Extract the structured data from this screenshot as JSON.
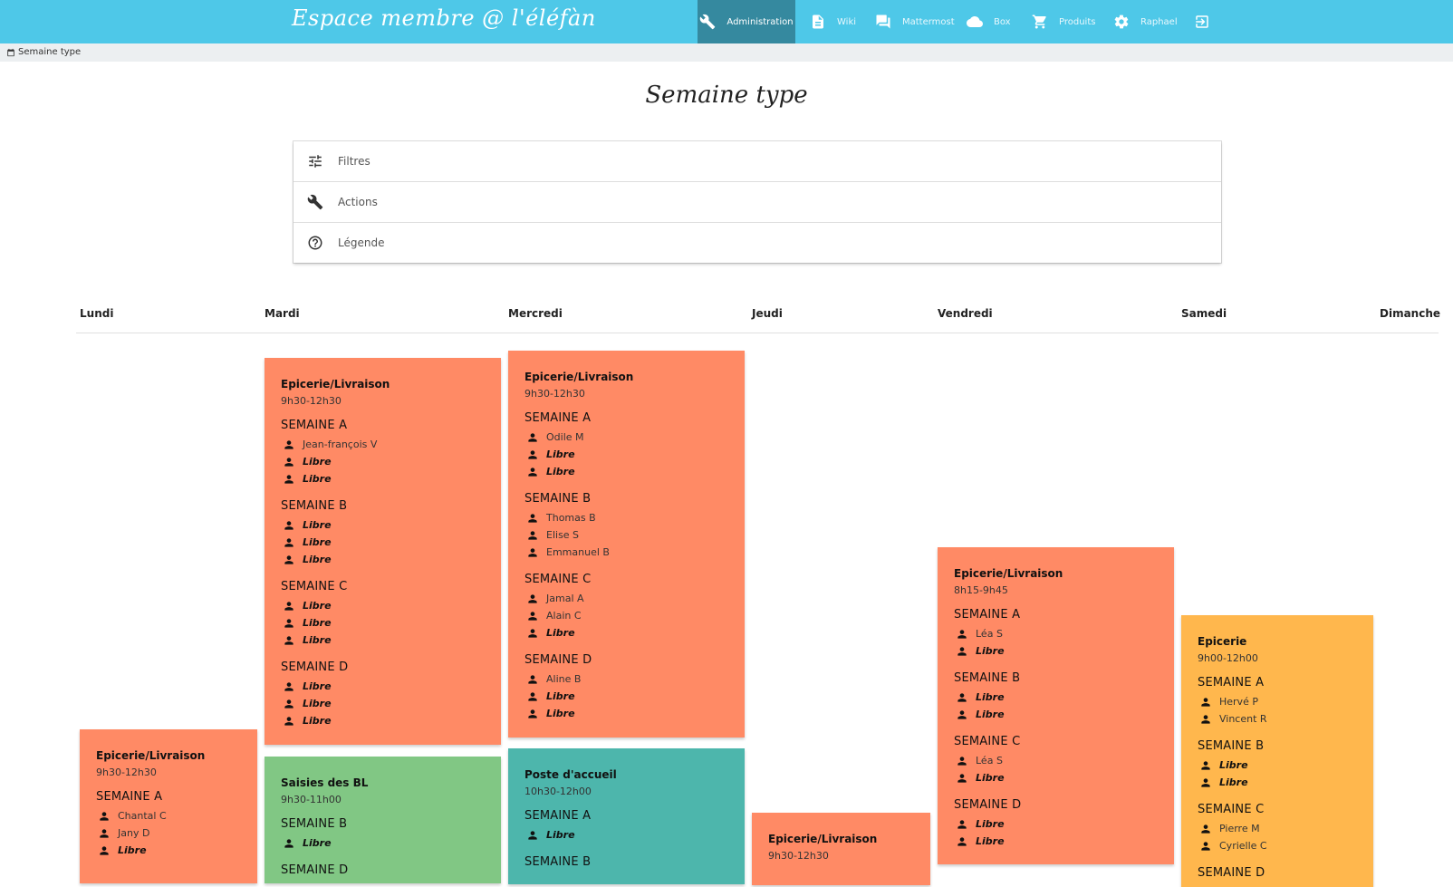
{
  "app": {
    "brand": "Espace membre @ l'éléfàn"
  },
  "nav": [
    {
      "label": "Administration",
      "icon": "wrench-icon",
      "active": true
    },
    {
      "label": "Wiki",
      "icon": "document-icon"
    },
    {
      "label": "Mattermost",
      "icon": "chat-icon"
    },
    {
      "label": "Box",
      "icon": "cloud-icon"
    },
    {
      "label": "Produits",
      "icon": "cart-icon"
    },
    {
      "label": "Raphael",
      "icon": "gear-icon"
    },
    {
      "label": "",
      "icon": "logout-icon"
    }
  ],
  "breadcrumb": {
    "label": "Semaine type",
    "icon": "calendar-icon"
  },
  "page": {
    "title": "Semaine type"
  },
  "collapsible": [
    {
      "label": "Filtres",
      "icon": "tune-icon"
    },
    {
      "label": "Actions",
      "icon": "wrench-icon"
    },
    {
      "label": "Légende",
      "icon": "help-circle-icon"
    }
  ],
  "days": [
    "Lundi",
    "Mardi",
    "Mercredi",
    "Jeudi",
    "Vendredi",
    "Samedi",
    "Dimanche"
  ],
  "colors": {
    "orange": "#ff8a65",
    "green": "#81c784",
    "teal": "#4db6ac",
    "amber": "#ffb74d",
    "topbar": "#4ec8e8",
    "active": "#35899f"
  },
  "cards": [
    {
      "day": "Lundi",
      "color": "orange",
      "title": "Epicerie/Livraison",
      "time": "9h30-12h30",
      "weeks": [
        {
          "label": "SEMAINE A",
          "people": [
            {
              "name": "Chantal C",
              "libre": false
            },
            {
              "name": "Jany D",
              "libre": false
            },
            {
              "name": "Libre",
              "libre": true
            }
          ]
        }
      ]
    },
    {
      "day": "Mardi",
      "color": "orange",
      "title": "Epicerie/Livraison",
      "time": "9h30-12h30",
      "weeks": [
        {
          "label": "SEMAINE A",
          "people": [
            {
              "name": "Jean-françois V",
              "libre": false
            },
            {
              "name": "Libre",
              "libre": true
            },
            {
              "name": "Libre",
              "libre": true
            }
          ]
        },
        {
          "label": "SEMAINE B",
          "people": [
            {
              "name": "Libre",
              "libre": true
            },
            {
              "name": "Libre",
              "libre": true
            },
            {
              "name": "Libre",
              "libre": true
            }
          ]
        },
        {
          "label": "SEMAINE C",
          "people": [
            {
              "name": "Libre",
              "libre": true
            },
            {
              "name": "Libre",
              "libre": true
            },
            {
              "name": "Libre",
              "libre": true
            }
          ]
        },
        {
          "label": "SEMAINE D",
          "people": [
            {
              "name": "Libre",
              "libre": true
            },
            {
              "name": "Libre",
              "libre": true
            },
            {
              "name": "Libre",
              "libre": true
            }
          ]
        }
      ]
    },
    {
      "day": "Mardi",
      "color": "green",
      "title": "Saisies des BL",
      "time": "9h30-11h00",
      "weeks": [
        {
          "label": "SEMAINE B",
          "people": [
            {
              "name": "Libre",
              "libre": true
            }
          ]
        },
        {
          "label": "SEMAINE D",
          "people": []
        }
      ]
    },
    {
      "day": "Mercredi",
      "color": "orange",
      "title": "Epicerie/Livraison",
      "time": "9h30-12h30",
      "weeks": [
        {
          "label": "SEMAINE A",
          "people": [
            {
              "name": "Odile M",
              "libre": false
            },
            {
              "name": "Libre",
              "libre": true
            },
            {
              "name": "Libre",
              "libre": true
            }
          ]
        },
        {
          "label": "SEMAINE B",
          "people": [
            {
              "name": "Thomas B",
              "libre": false
            },
            {
              "name": "Elise S",
              "libre": false
            },
            {
              "name": "Emmanuel B",
              "libre": false
            }
          ]
        },
        {
          "label": "SEMAINE C",
          "people": [
            {
              "name": "Jamal A",
              "libre": false
            },
            {
              "name": "Alain C",
              "libre": false
            },
            {
              "name": "Libre",
              "libre": true
            }
          ]
        },
        {
          "label": "SEMAINE D",
          "people": [
            {
              "name": "Aline B",
              "libre": false
            },
            {
              "name": "Libre",
              "libre": true
            },
            {
              "name": "Libre",
              "libre": true
            }
          ]
        }
      ]
    },
    {
      "day": "Mercredi",
      "color": "teal",
      "title": "Poste d'accueil",
      "time": "10h30-12h00",
      "weeks": [
        {
          "label": "SEMAINE A",
          "people": [
            {
              "name": "Libre",
              "libre": true
            }
          ]
        },
        {
          "label": "SEMAINE B",
          "people": []
        }
      ]
    },
    {
      "day": "Jeudi",
      "color": "orange",
      "title": "Epicerie/Livraison",
      "time": "9h30-12h30",
      "weeks": []
    },
    {
      "day": "Vendredi",
      "color": "orange",
      "title": "Epicerie/Livraison",
      "time": "8h15-9h45",
      "weeks": [
        {
          "label": "SEMAINE A",
          "people": [
            {
              "name": "Léa S",
              "libre": false
            },
            {
              "name": "Libre",
              "libre": true
            }
          ]
        },
        {
          "label": "SEMAINE B",
          "people": [
            {
              "name": "Libre",
              "libre": true
            },
            {
              "name": "Libre",
              "libre": true
            }
          ]
        },
        {
          "label": "SEMAINE C",
          "people": [
            {
              "name": "Léa S",
              "libre": false
            },
            {
              "name": "Libre",
              "libre": true
            }
          ]
        },
        {
          "label": "SEMAINE D",
          "people": [
            {
              "name": "Libre",
              "libre": true
            },
            {
              "name": "Libre",
              "libre": true
            }
          ]
        }
      ]
    },
    {
      "day": "Samedi",
      "color": "amber",
      "title": "Epicerie",
      "time": "9h00-12h00",
      "weeks": [
        {
          "label": "SEMAINE A",
          "people": [
            {
              "name": "Hervé P",
              "libre": false
            },
            {
              "name": "Vincent R",
              "libre": false
            }
          ]
        },
        {
          "label": "SEMAINE B",
          "people": [
            {
              "name": "Libre",
              "libre": true
            },
            {
              "name": "Libre",
              "libre": true
            }
          ]
        },
        {
          "label": "SEMAINE C",
          "people": [
            {
              "name": "Pierre M",
              "libre": false
            },
            {
              "name": "Cyrielle C",
              "libre": false
            }
          ]
        },
        {
          "label": "SEMAINE D",
          "people": []
        }
      ]
    }
  ]
}
